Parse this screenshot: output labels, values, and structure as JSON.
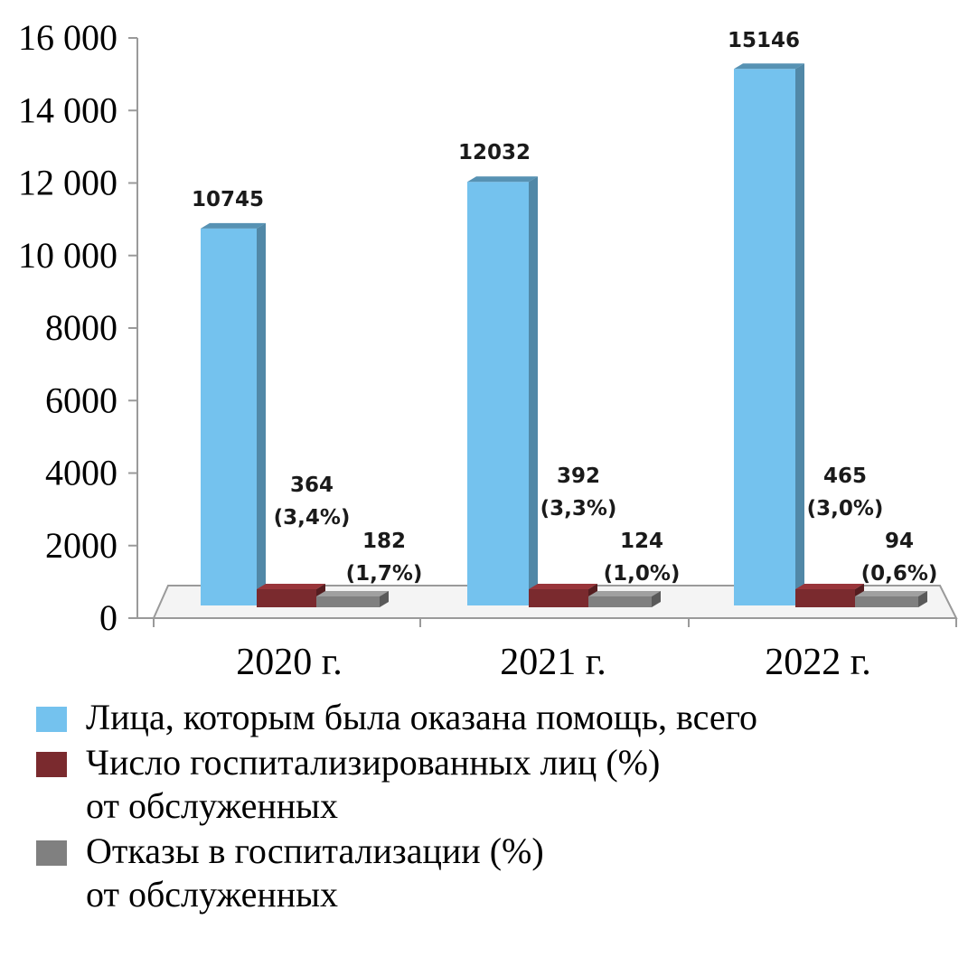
{
  "chart_data": {
    "type": "bar",
    "categories": [
      "2020 г.",
      "2021 г.",
      "2022 г."
    ],
    "ylim": [
      0,
      16000
    ],
    "y_ticks": [
      "0",
      "2000",
      "4000",
      "6000",
      "8000",
      "10 000",
      "12 000",
      "14 000",
      "16 000"
    ],
    "y_tick_values": [
      0,
      2000,
      4000,
      6000,
      8000,
      10000,
      12000,
      14000,
      16000
    ],
    "three_d": true,
    "series": [
      {
        "name": "Лица, которым была оказана помощь, всего",
        "values": [
          10745,
          12032,
          15146
        ],
        "labels": [
          "10745",
          "12032",
          "15146"
        ],
        "color": "#74c2ee"
      },
      {
        "name": "Число госпитализированных лиц (%) от обслуженных",
        "values": [
          364,
          392,
          465
        ],
        "labels": [
          [
            "364",
            "(3,4%)"
          ],
          [
            "392",
            "(3,3%)"
          ],
          [
            "465",
            "(3,0%)"
          ]
        ],
        "color": "#7a2a2e"
      },
      {
        "name": "Отказы в госпитализации (%) от обслуженных",
        "values": [
          182,
          124,
          94
        ],
        "labels": [
          [
            "182",
            "(1,7%)"
          ],
          [
            "124",
            "(1,0%)"
          ],
          [
            "94",
            "(0,6%)"
          ]
        ],
        "color": "#808080"
      }
    ],
    "legend_position": "bottom",
    "grid": false
  },
  "legend": {
    "items": [
      {
        "lines": [
          "Лица, которым была оказана помощь, всего"
        ],
        "color": "#74c2ee"
      },
      {
        "lines": [
          "Число госпитализированных лиц (%)",
          "от обслуженных"
        ],
        "color": "#7a2a2e"
      },
      {
        "lines": [
          "Отказы в госпитализации (%)",
          "от обслуженных"
        ],
        "color": "#808080"
      }
    ]
  }
}
